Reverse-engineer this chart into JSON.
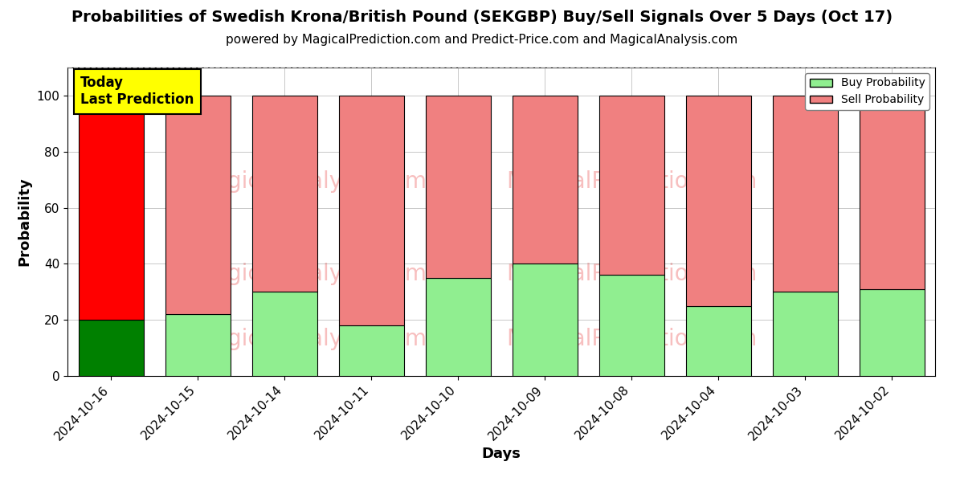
{
  "title": "Probabilities of Swedish Krona/British Pound (SEKGBP) Buy/Sell Signals Over 5 Days (Oct 17)",
  "subtitle": "powered by MagicalPrediction.com and Predict-Price.com and MagicalAnalysis.com",
  "xlabel": "Days",
  "ylabel": "Probability",
  "dates": [
    "2024-10-16",
    "2024-10-15",
    "2024-10-14",
    "2024-10-11",
    "2024-10-10",
    "2024-10-09",
    "2024-10-08",
    "2024-10-04",
    "2024-10-03",
    "2024-10-02"
  ],
  "buy_values": [
    20,
    22,
    30,
    18,
    35,
    40,
    36,
    25,
    30,
    31
  ],
  "sell_values": [
    80,
    78,
    70,
    82,
    65,
    60,
    64,
    75,
    70,
    69
  ],
  "today_buy_color": "#008000",
  "today_sell_color": "#FF0000",
  "other_buy_color": "#90EE90",
  "other_sell_color": "#F08080",
  "today_label_bg": "#FFFF00",
  "today_label_text": "Today\nLast Prediction",
  "legend_buy_label": "Buy Probability",
  "legend_sell_label": "Sell Probability",
  "ylim": [
    0,
    110
  ],
  "yticks": [
    0,
    20,
    40,
    60,
    80,
    100
  ],
  "dashed_line_y": 110,
  "bar_edge_color": "#000000",
  "bar_linewidth": 0.8,
  "title_fontsize": 14,
  "subtitle_fontsize": 11,
  "axis_label_fontsize": 13,
  "tick_fontsize": 11,
  "legend_fontsize": 10,
  "bar_width": 0.75
}
